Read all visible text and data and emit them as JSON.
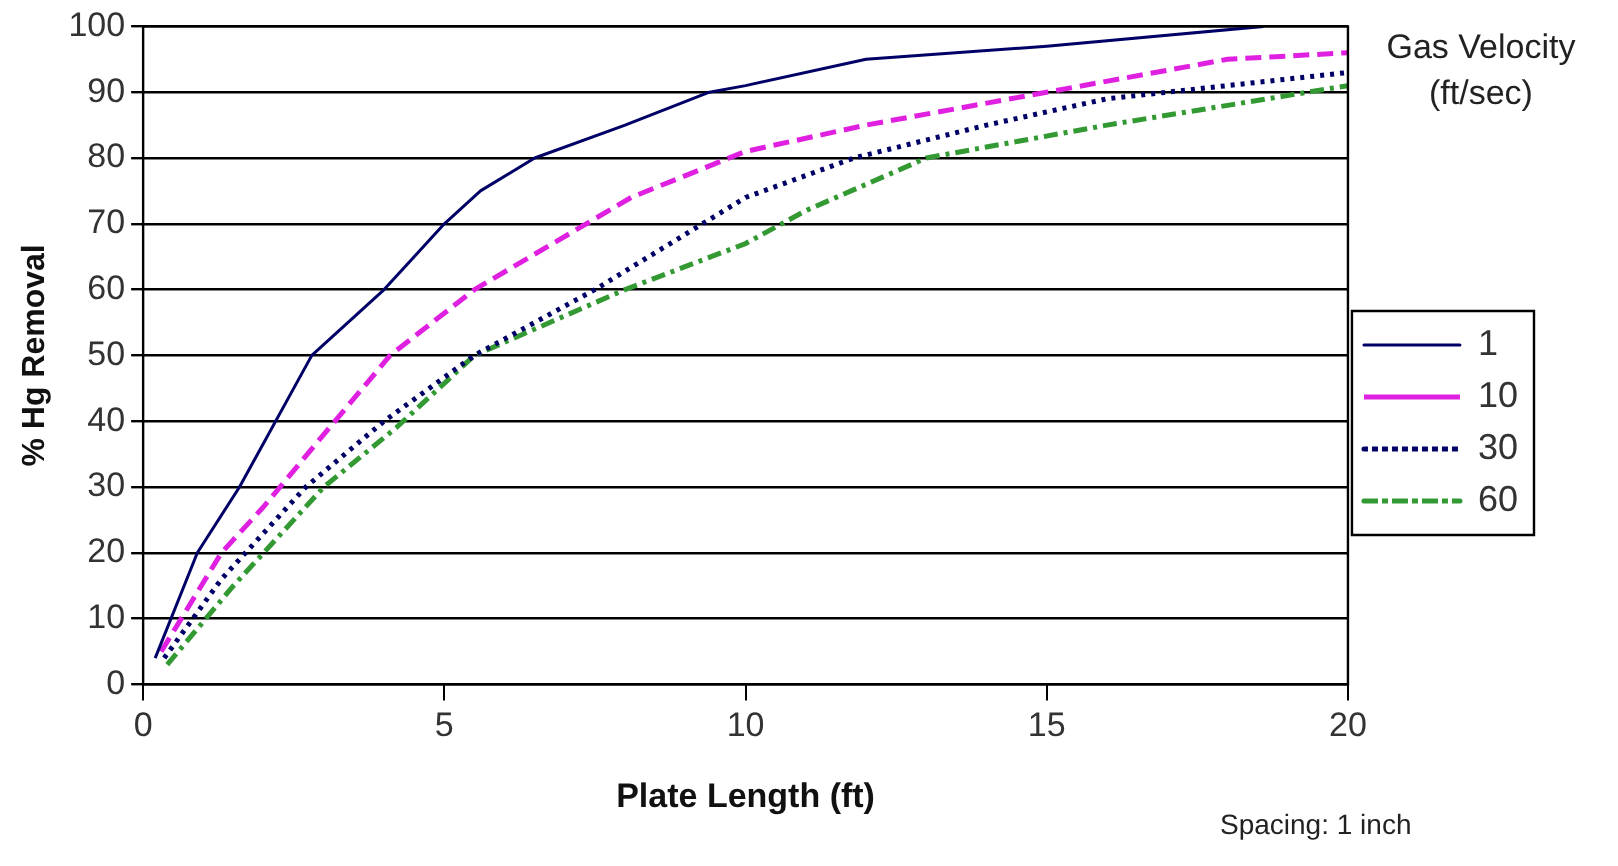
{
  "chart_data": {
    "type": "line",
    "xlabel": "Plate Length (ft)",
    "ylabel": "% Hg Removal",
    "legend_title": "Gas Velocity (ft/sec)",
    "annotations": [
      "Spacing: 1 inch"
    ],
    "xlim": [
      0,
      20
    ],
    "xticks": [
      0,
      5,
      10,
      15,
      20
    ],
    "ylim": [
      0,
      100
    ],
    "yticks": [
      0,
      10,
      20,
      30,
      40,
      50,
      60,
      70,
      80,
      90,
      100
    ],
    "grid": "y",
    "legend": "right",
    "marker": "none",
    "series": [
      {
        "name": "1",
        "color": "#000066",
        "line_style": "solid",
        "x": [
          0.2,
          0.9,
          1.6,
          2.8,
          4,
          5,
          5.6,
          6.5,
          8,
          9.4,
          10,
          12,
          15,
          18.6
        ],
        "values": [
          4,
          20,
          30,
          50,
          60,
          70,
          75,
          80,
          85,
          90,
          91,
          95,
          97,
          100
        ]
      },
      {
        "name": "10",
        "color": "#e020e0",
        "line_style": "dashed",
        "x": [
          0.3,
          1.3,
          2,
          3,
          4.1,
          5.5,
          6.8,
          8.1,
          10,
          12,
          15,
          18,
          20
        ],
        "values": [
          5,
          20,
          27,
          38,
          50,
          60,
          67,
          74,
          81,
          85,
          90,
          95,
          96
        ]
      },
      {
        "name": "30",
        "color": "#000066",
        "line_style": "dotted",
        "x": [
          0.35,
          1.3,
          2.7,
          4,
          5.5,
          7.5,
          10,
          11.8,
          14,
          16,
          18,
          20
        ],
        "values": [
          4,
          16,
          30,
          40,
          50,
          60,
          74,
          80,
          85,
          89,
          91,
          93
        ]
      },
      {
        "name": "60",
        "color": "#339933",
        "line_style": "dashdot",
        "x": [
          0.4,
          1.5,
          3,
          4.2,
          5.5,
          8,
          10,
          11,
          13,
          16,
          18,
          20
        ],
        "values": [
          3,
          15,
          30,
          39,
          50,
          60,
          67,
          72,
          80,
          85,
          88,
          91
        ]
      }
    ]
  }
}
